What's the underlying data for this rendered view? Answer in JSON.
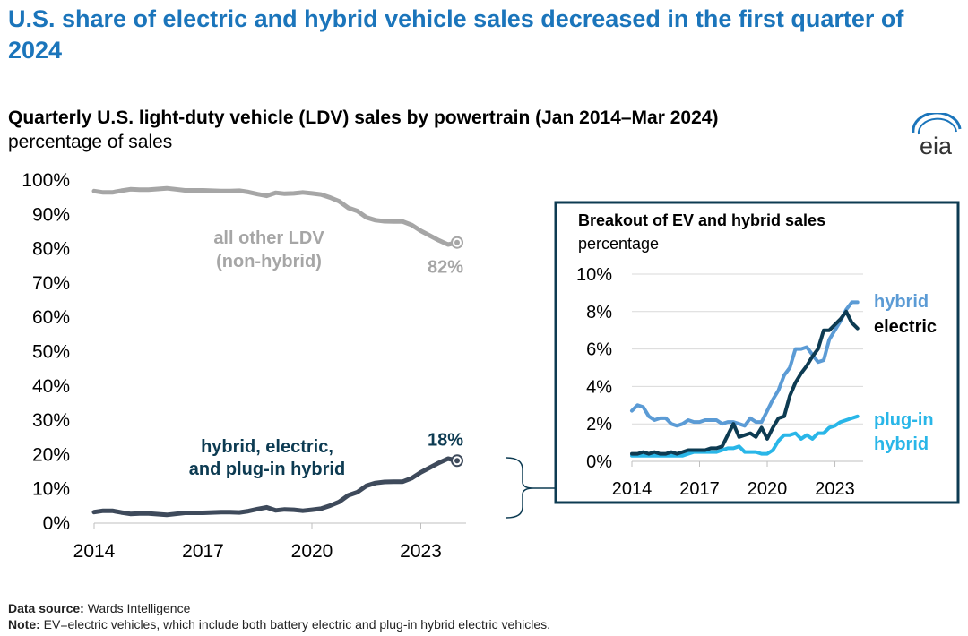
{
  "headline": "U.S. share of electric and hybrid vehicle sales decreased in the first quarter of 2024",
  "logo_text": "eia",
  "footer": {
    "source_label": "Data source:",
    "source_text": "Wards Intelligence",
    "note_label": "Note:",
    "note_text": "EV=electric vehicles, which include both battery electric and plug-in hybrid electric vehicles."
  },
  "colors": {
    "headline": "#1b75bb",
    "other_ldv": "#a6a6a6",
    "combined": "#3e4a5b",
    "hybrid": "#5b9bd5",
    "electric": "#0d3b52",
    "plugin": "#29b6e8",
    "inset_border": "#0d3b52"
  },
  "chart_data": [
    {
      "type": "line",
      "title": "Quarterly U.S. light-duty vehicle (LDV) sales by powertrain (Jan 2014–Mar 2024)",
      "ylabel": "percentage of sales",
      "ylim": [
        0,
        100
      ],
      "yticks": [
        "0%",
        "10%",
        "20%",
        "30%",
        "40%",
        "50%",
        "60%",
        "70%",
        "80%",
        "90%",
        "100%"
      ],
      "xticks": [
        "2014",
        "2017",
        "2020",
        "2023"
      ],
      "xlim": [
        2014.0,
        2024.25
      ],
      "series": [
        {
          "name": "all other LDV (non-hybrid)",
          "label_lines": [
            "all other LDV",
            "(non-hybrid)"
          ],
          "end_label": "82%",
          "x": [
            2014.0,
            2014.25,
            2014.5,
            2014.75,
            2015.0,
            2015.25,
            2015.5,
            2015.75,
            2016.0,
            2016.25,
            2016.5,
            2016.75,
            2017.0,
            2017.25,
            2017.5,
            2017.75,
            2018.0,
            2018.25,
            2018.5,
            2018.75,
            2019.0,
            2019.25,
            2019.5,
            2019.75,
            2020.0,
            2020.25,
            2020.5,
            2020.75,
            2021.0,
            2021.25,
            2021.5,
            2021.75,
            2022.0,
            2022.25,
            2022.5,
            2022.75,
            2023.0,
            2023.25,
            2023.5,
            2023.75,
            2024.0
          ],
          "values": [
            96.8,
            96.4,
            96.4,
            96.9,
            97.3,
            97.2,
            97.2,
            97.4,
            97.6,
            97.3,
            97.0,
            97.0,
            97.0,
            96.9,
            96.8,
            96.8,
            96.9,
            96.5,
            95.9,
            95.4,
            96.3,
            96.0,
            96.1,
            96.4,
            96.1,
            95.8,
            94.9,
            93.8,
            91.9,
            91.0,
            89.1,
            88.3,
            88.0,
            87.9,
            87.9,
            86.9,
            85.2,
            83.8,
            82.4,
            81.2,
            81.8
          ]
        },
        {
          "name": "hybrid, electric, and plug-in hybrid",
          "label_lines": [
            "hybrid, electric,",
            "and plug-in hybrid"
          ],
          "end_label": "18%",
          "x": [
            2014.0,
            2014.25,
            2014.5,
            2014.75,
            2015.0,
            2015.25,
            2015.5,
            2015.75,
            2016.0,
            2016.25,
            2016.5,
            2016.75,
            2017.0,
            2017.25,
            2017.5,
            2017.75,
            2018.0,
            2018.25,
            2018.5,
            2018.75,
            2019.0,
            2019.25,
            2019.5,
            2019.75,
            2020.0,
            2020.25,
            2020.5,
            2020.75,
            2021.0,
            2021.25,
            2021.5,
            2021.75,
            2022.0,
            2022.25,
            2022.5,
            2022.75,
            2023.0,
            2023.25,
            2023.5,
            2023.75,
            2024.0
          ],
          "values": [
            3.2,
            3.6,
            3.6,
            3.1,
            2.7,
            2.8,
            2.8,
            2.6,
            2.4,
            2.7,
            3.0,
            3.0,
            3.0,
            3.1,
            3.2,
            3.2,
            3.1,
            3.5,
            4.1,
            4.6,
            3.7,
            4.0,
            3.9,
            3.6,
            3.9,
            4.2,
            5.1,
            6.2,
            8.1,
            9.0,
            10.9,
            11.7,
            12.0,
            12.1,
            12.1,
            13.1,
            14.8,
            16.2,
            17.6,
            18.8,
            18.2
          ]
        }
      ]
    },
    {
      "type": "line",
      "title": "Breakout of EV and hybrid sales",
      "ylabel": "percentage",
      "ylim": [
        0,
        10
      ],
      "yticks": [
        "0%",
        "2%",
        "4%",
        "6%",
        "8%",
        "10%"
      ],
      "xticks": [
        "2014",
        "2017",
        "2020",
        "2023"
      ],
      "xlim": [
        2014.0,
        2024.25
      ],
      "series": [
        {
          "name": "hybrid",
          "label_lines": [
            "hybrid"
          ],
          "x": [
            2014.0,
            2014.25,
            2014.5,
            2014.75,
            2015.0,
            2015.25,
            2015.5,
            2015.75,
            2016.0,
            2016.25,
            2016.5,
            2016.75,
            2017.0,
            2017.25,
            2017.5,
            2017.75,
            2018.0,
            2018.25,
            2018.5,
            2018.75,
            2019.0,
            2019.25,
            2019.5,
            2019.75,
            2020.0,
            2020.25,
            2020.5,
            2020.75,
            2021.0,
            2021.25,
            2021.5,
            2021.75,
            2022.0,
            2022.25,
            2022.5,
            2022.75,
            2023.0,
            2023.25,
            2023.5,
            2023.75,
            2024.0
          ],
          "values": [
            2.7,
            3.0,
            2.9,
            2.4,
            2.2,
            2.3,
            2.3,
            2.0,
            1.9,
            2.0,
            2.2,
            2.1,
            2.1,
            2.2,
            2.2,
            2.2,
            2.0,
            2.1,
            2.1,
            2.0,
            1.9,
            2.3,
            2.1,
            2.1,
            2.7,
            3.3,
            3.8,
            4.6,
            5.0,
            6.0,
            6.0,
            6.1,
            5.7,
            5.3,
            5.4,
            6.5,
            7.0,
            7.5,
            8.1,
            8.5,
            8.5
          ]
        },
        {
          "name": "electric",
          "label_lines": [
            "electric"
          ],
          "x": [
            2014.0,
            2014.25,
            2014.5,
            2014.75,
            2015.0,
            2015.25,
            2015.5,
            2015.75,
            2016.0,
            2016.25,
            2016.5,
            2016.75,
            2017.0,
            2017.25,
            2017.5,
            2017.75,
            2018.0,
            2018.25,
            2018.5,
            2018.75,
            2019.0,
            2019.25,
            2019.5,
            2019.75,
            2020.0,
            2020.25,
            2020.5,
            2020.75,
            2021.0,
            2021.25,
            2021.5,
            2021.75,
            2022.0,
            2022.25,
            2022.5,
            2022.75,
            2023.0,
            2023.25,
            2023.5,
            2023.75,
            2024.0
          ],
          "values": [
            0.4,
            0.4,
            0.5,
            0.4,
            0.5,
            0.4,
            0.4,
            0.5,
            0.4,
            0.5,
            0.6,
            0.6,
            0.6,
            0.6,
            0.7,
            0.7,
            0.8,
            1.4,
            2.0,
            1.3,
            1.4,
            1.5,
            1.3,
            1.8,
            1.2,
            1.8,
            2.3,
            2.4,
            3.5,
            4.2,
            4.7,
            5.1,
            5.6,
            6.0,
            7.0,
            7.0,
            7.3,
            7.6,
            8.0,
            7.4,
            7.1
          ]
        },
        {
          "name": "plug-in hybrid",
          "label_lines": [
            "plug-in",
            "hybrid"
          ],
          "x": [
            2014.0,
            2014.25,
            2014.5,
            2014.75,
            2015.0,
            2015.25,
            2015.5,
            2015.75,
            2016.0,
            2016.25,
            2016.5,
            2016.75,
            2017.0,
            2017.25,
            2017.5,
            2017.75,
            2018.0,
            2018.25,
            2018.5,
            2018.75,
            2019.0,
            2019.25,
            2019.5,
            2019.75,
            2020.0,
            2020.25,
            2020.5,
            2020.75,
            2021.0,
            2021.25,
            2021.5,
            2021.75,
            2022.0,
            2022.25,
            2022.5,
            2022.75,
            2023.0,
            2023.25,
            2023.5,
            2023.75,
            2024.0
          ],
          "values": [
            0.3,
            0.3,
            0.3,
            0.3,
            0.3,
            0.3,
            0.3,
            0.3,
            0.3,
            0.3,
            0.4,
            0.5,
            0.5,
            0.5,
            0.5,
            0.5,
            0.6,
            0.7,
            0.7,
            0.8,
            0.5,
            0.5,
            0.5,
            0.4,
            0.4,
            0.6,
            1.1,
            1.4,
            1.4,
            1.5,
            1.2,
            1.4,
            1.2,
            1.5,
            1.5,
            1.8,
            1.9,
            2.1,
            2.2,
            2.3,
            2.4
          ]
        }
      ]
    }
  ]
}
